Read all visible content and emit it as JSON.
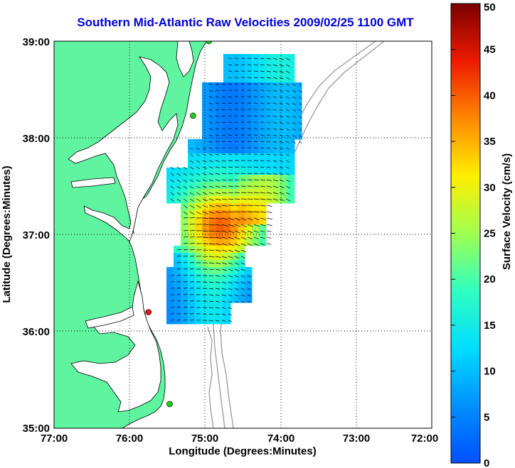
{
  "title": "Southern Mid-Atlantic Raw Velocities 2009/02/25 1100 GMT",
  "xlabel": "Longitude (Degrees:Minutes)",
  "ylabel": "Latitude (Degrees:Minutes)",
  "colorbar_label": "Surface Velocity (cm/s)",
  "x_ticks": [
    "77:00",
    "76:00",
    "75:00",
    "74:00",
    "73:00",
    "72:00"
  ],
  "y_ticks": [
    "39:00",
    "38:00",
    "37:00",
    "36:00",
    "35:00"
  ],
  "colorbar_ticks": [
    "50",
    "45",
    "40",
    "35",
    "30",
    "25",
    "20",
    "15",
    "10",
    "5",
    "0"
  ],
  "colors": {
    "land": "#5ff4a0",
    "title": "#0000d8",
    "coast_line": "#000000",
    "bathymetry": "#999999",
    "station_green": "#22cc22",
    "station_red": "#ee1111"
  },
  "map": {
    "lon_range": [
      -77,
      -72
    ],
    "lat_range": [
      35,
      39
    ],
    "grid": true,
    "colorbar_range": [
      0,
      50
    ],
    "colormap": "jet"
  },
  "stations": [
    {
      "lon": -74.95,
      "lat": 39.0,
      "color": "green"
    },
    {
      "lon": -75.16,
      "lat": 38.23,
      "color": "green"
    },
    {
      "lon": -75.75,
      "lat": 36.2,
      "color": "red"
    },
    {
      "lon": -75.47,
      "lat": 35.25,
      "color": "green"
    }
  ]
}
